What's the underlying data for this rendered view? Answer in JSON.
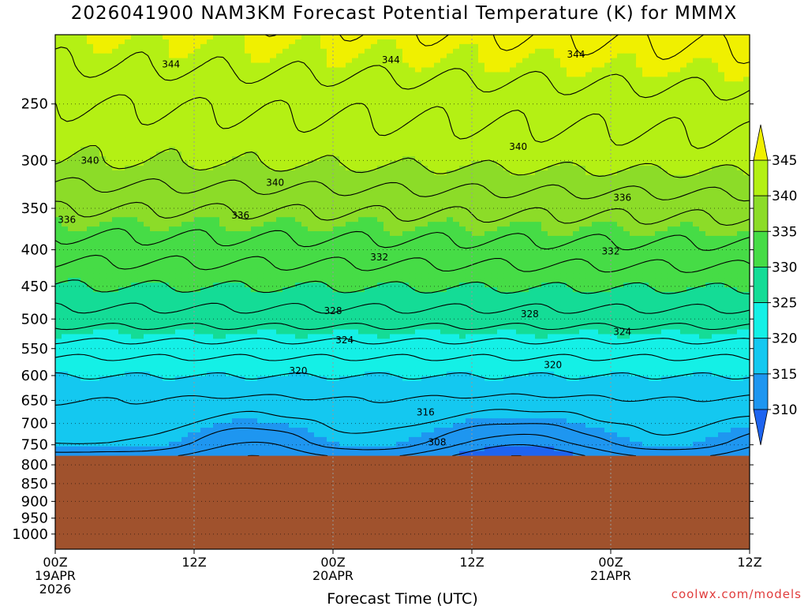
{
  "title": "2026041900 NAM3KM Forecast Potential Temperature (K) for MMMX",
  "watermark": "coolwx.com/models",
  "colors": {
    "bands": [
      "#1e64f0",
      "#1e96f0",
      "#14c8f0",
      "#14f0e6",
      "#14dc96",
      "#46dc46",
      "#8cdc28",
      "#b4f014",
      "#f0f000"
    ],
    "underground": "#a0522d",
    "contour": "#000000",
    "grid": "#999999"
  },
  "chart_data": {
    "type": "heatmap",
    "title": "2026041900 NAM3KM Forecast Potential Temperature (K) for MMMX",
    "xlabel": "Forecast Time (UTC)",
    "ylabel": "",
    "x_range_hours": [
      0,
      60
    ],
    "y_range_hPa": [
      1050,
      200
    ],
    "y_scale": "log-pressure",
    "grid": "dotted",
    "x_ticks": [
      {
        "hour": 0,
        "lines": [
          "00Z",
          "19APR",
          "2026"
        ]
      },
      {
        "hour": 12,
        "lines": [
          "12Z"
        ]
      },
      {
        "hour": 24,
        "lines": [
          "00Z",
          "20APR"
        ]
      },
      {
        "hour": 36,
        "lines": [
          "12Z"
        ]
      },
      {
        "hour": 48,
        "lines": [
          "00Z",
          "21APR"
        ]
      },
      {
        "hour": 60,
        "lines": [
          "12Z"
        ]
      }
    ],
    "y_ticks": [
      250,
      300,
      350,
      400,
      450,
      500,
      550,
      600,
      650,
      700,
      750,
      800,
      850,
      900,
      950,
      1000
    ],
    "surface_pressure_hPa": 777,
    "colorbar": {
      "levels": [
        310,
        315,
        320,
        325,
        330,
        335,
        340,
        345
      ],
      "labels": [
        "345",
        "340",
        "335",
        "330",
        "325",
        "320",
        "315",
        "310"
      ],
      "extend": "both"
    },
    "field": {
      "units": "K",
      "profile": [
        {
          "p": 777,
          "theta": 313
        },
        {
          "p": 750,
          "theta": 316
        },
        {
          "p": 700,
          "theta": 317
        },
        {
          "p": 650,
          "theta": 318
        },
        {
          "p": 600,
          "theta": 320
        },
        {
          "p": 550,
          "theta": 323
        },
        {
          "p": 500,
          "theta": 327
        },
        {
          "p": 450,
          "theta": 330
        },
        {
          "p": 400,
          "theta": 333
        },
        {
          "p": 350,
          "theta": 336
        },
        {
          "p": 300,
          "theta": 340
        },
        {
          "p": 250,
          "theta": 342
        },
        {
          "p": 220,
          "theta": 344
        },
        {
          "p": 200,
          "theta": 345
        }
      ],
      "diurnal_cold_pools": [
        {
          "center_hour": 17,
          "width_hours": 6,
          "min_theta": 310
        },
        {
          "center_hour": 40,
          "width_hours": 8,
          "min_theta": 308
        },
        {
          "center_hour": 63,
          "width_hours": 6,
          "min_theta": 310
        }
      ]
    },
    "contour_labels": [
      {
        "text": "344",
        "hour": 10,
        "p": 220
      },
      {
        "text": "344",
        "hour": 29,
        "p": 217
      },
      {
        "text": "344",
        "hour": 45,
        "p": 213
      },
      {
        "text": "340",
        "hour": 3,
        "p": 300
      },
      {
        "text": "340",
        "hour": 19,
        "p": 322
      },
      {
        "text": "340",
        "hour": 40,
        "p": 287
      },
      {
        "text": "336",
        "hour": 1,
        "p": 363
      },
      {
        "text": "336",
        "hour": 16,
        "p": 358
      },
      {
        "text": "336",
        "hour": 49,
        "p": 338
      },
      {
        "text": "332",
        "hour": 28,
        "p": 410
      },
      {
        "text": "332",
        "hour": 48,
        "p": 402
      },
      {
        "text": "328",
        "hour": 24,
        "p": 487
      },
      {
        "text": "328",
        "hour": 41,
        "p": 492
      },
      {
        "text": "324",
        "hour": 25,
        "p": 535
      },
      {
        "text": "324",
        "hour": 49,
        "p": 521
      },
      {
        "text": "320",
        "hour": 21,
        "p": 591
      },
      {
        "text": "320",
        "hour": 43,
        "p": 580
      },
      {
        "text": "316",
        "hour": 32,
        "p": 675
      },
      {
        "text": "308",
        "hour": 33,
        "p": 744
      }
    ]
  }
}
